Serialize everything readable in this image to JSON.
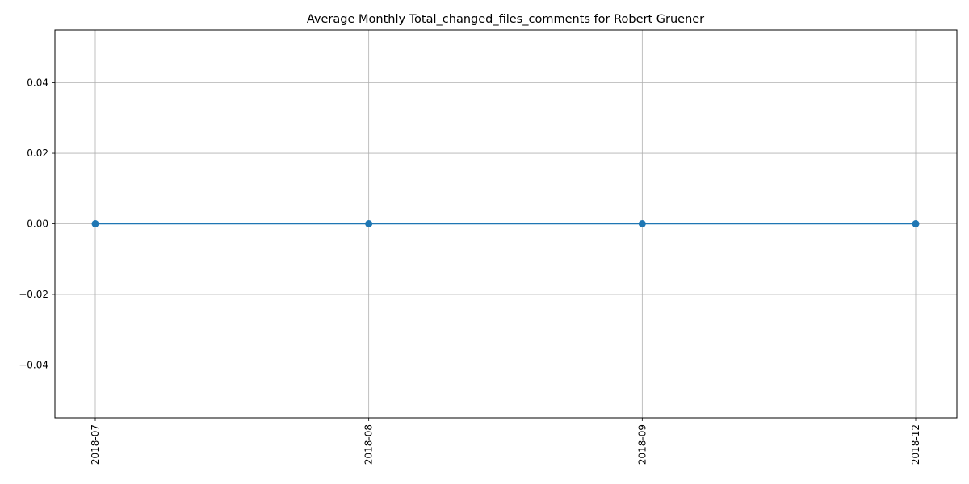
{
  "chart_data": {
    "type": "line",
    "title": "Average Monthly Total_changed_files_comments for Robert Gruener",
    "xlabel": "",
    "ylabel": "",
    "categories": [
      "2018-07",
      "2018-08",
      "2018-09",
      "2018-12"
    ],
    "series": [
      {
        "values": [
          0,
          0,
          0,
          0
        ],
        "color": "#1f77b4",
        "marker": "circle"
      }
    ],
    "ylim": [
      -0.055,
      0.055
    ],
    "yticks": [
      -0.04,
      -0.02,
      0.0,
      0.02,
      0.04
    ],
    "ytick_labels": [
      "−0.04",
      "−0.02",
      "0.00",
      "0.02",
      "0.04"
    ],
    "xtick_rotation": "vertical",
    "grid": true,
    "grid_color": "#b0b0b0",
    "legend": "none"
  }
}
